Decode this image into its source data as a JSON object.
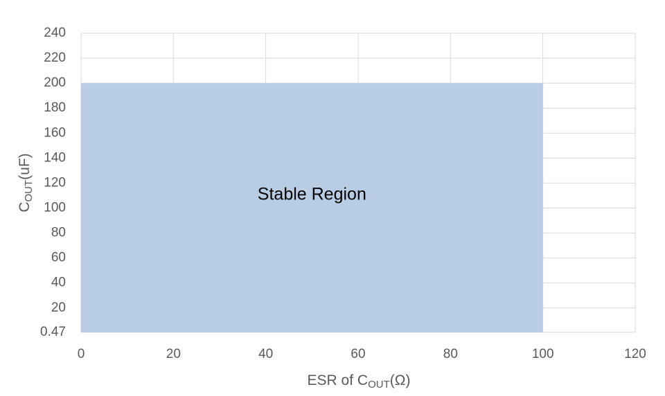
{
  "chart_data": {
    "type": "area",
    "x": [
      0,
      100
    ],
    "series": [
      {
        "values": [
          200,
          200
        ],
        "color": "#b8cce4"
      }
    ],
    "annotation": "Stable Region",
    "xlabel": {
      "main": "ESR of C",
      "sub": "OUT",
      "rest": "(Ω)"
    },
    "ylabel": {
      "main": "C",
      "sub": "OUT",
      "rest": "(uF)"
    },
    "xlim": [
      0,
      120
    ],
    "xticks": [
      0,
      20,
      40,
      60,
      80,
      100,
      120
    ],
    "ylim": [
      0.47,
      240
    ],
    "yticks": [
      0.47,
      20,
      40,
      60,
      80,
      100,
      120,
      140,
      160,
      180,
      200,
      220,
      240
    ],
    "grid": true
  }
}
